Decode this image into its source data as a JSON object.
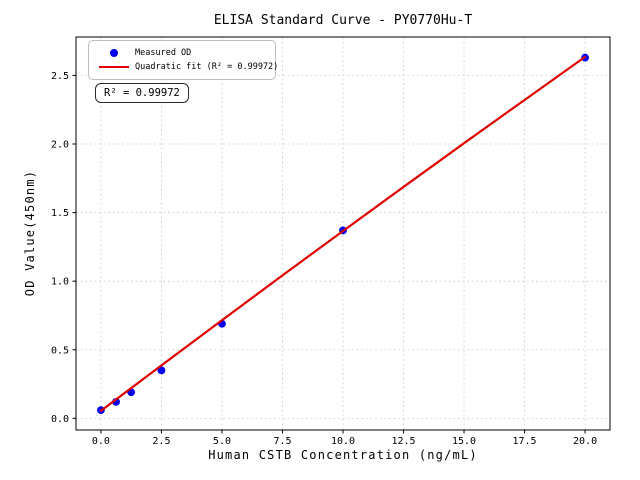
{
  "figure": {
    "title": "ELISA Standard Curve - PY0770Hu-T",
    "annotation": "R² = 0.99972",
    "legend": {
      "position": "upper left",
      "items": [
        {
          "label": "Measured OD",
          "marker": "dot",
          "color": "#0000ee"
        },
        {
          "label": "Quadratic fit (R² = 0.99972)",
          "marker": "line",
          "color": "#e00000"
        }
      ]
    }
  },
  "chart_data": {
    "type": "scatter",
    "title": "ELISA Standard Curve - PY0770Hu-T",
    "xlabel": "Human CSTB Concentration (ng/mL)",
    "ylabel": "OD Value(450nm)",
    "r_squared": 0.99972,
    "grid": true,
    "legend_position": "upper left",
    "xlim": [
      -1.03,
      21.03
    ],
    "ylim": [
      -0.085,
      2.78
    ],
    "xticks": [
      0,
      2.5,
      5,
      7.5,
      10,
      12.5,
      15,
      17.5,
      20
    ],
    "xtick_labels": [
      "0.0",
      "2.5",
      "5.0",
      "7.5",
      "10.0",
      "12.5",
      "15.0",
      "17.5",
      "20.0"
    ],
    "yticks": [
      0,
      0.5,
      1,
      1.5,
      2,
      2.5
    ],
    "ytick_labels": [
      "0.0",
      "0.5",
      "1.0",
      "1.5",
      "2.0",
      "2.5"
    ],
    "series": [
      {
        "name": "Measured OD",
        "type": "scatter",
        "color": "#0000ee",
        "x": [
          0,
          0.625,
          1.25,
          2.5,
          5,
          10,
          20
        ],
        "y": [
          0.06,
          0.12,
          0.19,
          0.35,
          0.69,
          1.37,
          2.63
        ]
      },
      {
        "name": "Quadratic fit (R² = 0.99972)",
        "type": "line",
        "color": "#e00000",
        "x": [
          0,
          2.5,
          5,
          7.5,
          10,
          12.5,
          15,
          17.5,
          20
        ],
        "y": [
          0.055,
          0.386,
          0.715,
          1.042,
          1.366,
          1.687,
          2.006,
          2.321,
          2.635
        ]
      }
    ]
  }
}
